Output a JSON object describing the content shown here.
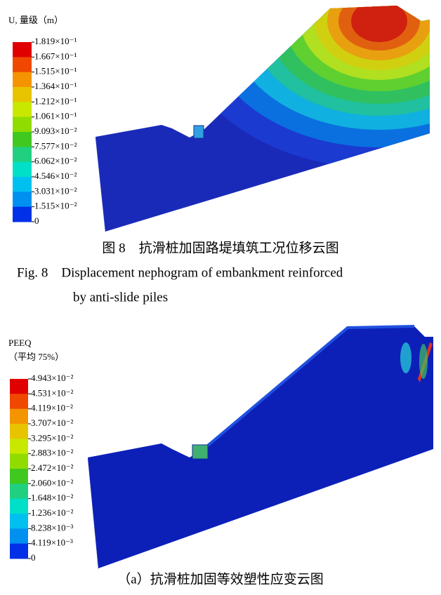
{
  "figures": [
    {
      "legend_title": "U, 量级（m）",
      "legend_labels": [
        "1.819×10⁻¹",
        "1.667×10⁻¹",
        "1.515×10⁻¹",
        "1.364×10⁻¹",
        "1.212×10⁻¹",
        "1.061×10⁻¹",
        "9.093×10⁻²",
        "7.577×10⁻²",
        "6.062×10⁻²",
        "4.546×10⁻²",
        "3.031×10⁻²",
        "1.515×10⁻²",
        "0"
      ],
      "caption_cn": "图 8　抗滑桩加固路堤填筑工况位移云图",
      "caption_en": [
        "Fig. 8　Displacement nephogram of embankment reinforced",
        "by anti-slide piles"
      ]
    },
    {
      "legend_title": [
        "PEEQ",
        "（平均 75%）"
      ],
      "legend_labels": [
        "4.943×10⁻²",
        "4.531×10⁻²",
        "4.119×10⁻²",
        "3.707×10⁻²",
        "3.295×10⁻²",
        "2.883×10⁻²",
        "2.472×10⁻²",
        "2.060×10⁻²",
        "1.648×10⁻²",
        "1.236×10⁻²",
        "8.238×10⁻³",
        "4.119×10⁻³",
        "0"
      ],
      "caption": "（a）抗滑桩加固等效塑性应变云图"
    }
  ]
}
